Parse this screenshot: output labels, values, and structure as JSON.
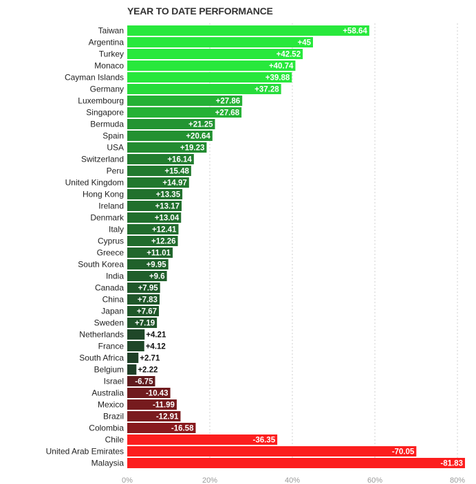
{
  "chart_data": {
    "type": "bar",
    "orientation": "horizontal",
    "title": "YEAR TO DATE PERFORMANCE",
    "xlabel": "",
    "ylabel": "",
    "xlim": [
      0,
      85
    ],
    "ticks": [
      0,
      20,
      40,
      60,
      80
    ],
    "tick_labels": [
      "0%",
      "20%",
      "40%",
      "60%",
      "80%"
    ],
    "grid": true,
    "legend": "none",
    "categories": [
      "Taiwan",
      "Argentina",
      "Turkey",
      "Monaco",
      "Cayman Islands",
      "Germany",
      "Luxembourg",
      "Singapore",
      "Bermuda",
      "Spain",
      "USA",
      "Switzerland",
      "Peru",
      "United Kingdom",
      "Hong Kong",
      "Ireland",
      "Denmark",
      "Italy",
      "Cyprus",
      "Greece",
      "South Korea",
      "India",
      "Canada",
      "China",
      "Japan",
      "Sweden",
      "Netherlands",
      "France",
      "South Africa",
      "Belgium",
      "Israel",
      "Australia",
      "Mexico",
      "Brazil",
      "Colombia",
      "Chile",
      "United Arab Emirates",
      "Malaysia"
    ],
    "values": [
      58.64,
      45,
      42.52,
      40.74,
      39.88,
      37.28,
      27.86,
      27.68,
      21.25,
      20.64,
      19.23,
      16.14,
      15.48,
      14.97,
      13.35,
      13.17,
      13.04,
      12.41,
      12.26,
      11.01,
      9.95,
      9.6,
      7.95,
      7.83,
      7.67,
      7.19,
      4.21,
      4.12,
      2.71,
      2.22,
      -6.75,
      -10.43,
      -11.99,
      -12.91,
      -16.58,
      -36.35,
      -70.05,
      -81.83
    ],
    "value_labels": [
      "+58.64",
      "+45",
      "+42.52",
      "+40.74",
      "+39.88",
      "+37.28",
      "+27.86",
      "+27.68",
      "+21.25",
      "+20.64",
      "+19.23",
      "+16.14",
      "+15.48",
      "+14.97",
      "+13.35",
      "+13.17",
      "+13.04",
      "+12.41",
      "+12.26",
      "+11.01",
      "+9.95",
      "+9.6",
      "+7.95",
      "+7.83",
      "+7.67",
      "+7.19",
      "+4.21",
      "+4.12",
      "+2.71",
      "+2.22",
      "-6.75",
      "-10.43",
      "-11.99",
      "-12.91",
      "-16.58",
      "-36.35",
      "-70.05",
      "-81.83"
    ],
    "note": "Bar length reflects absolute value; negative values drawn in red to the right of the axis."
  }
}
